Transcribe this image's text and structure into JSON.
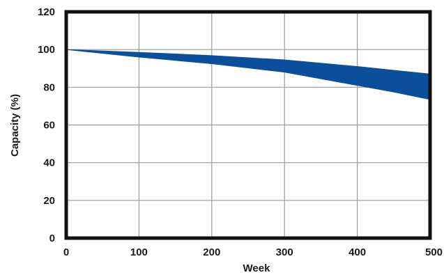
{
  "chart_data": {
    "type": "area",
    "title": "",
    "xlabel": "Week",
    "ylabel": "Capacity (%)",
    "xlim": [
      0,
      500
    ],
    "ylim": [
      0,
      120
    ],
    "x_ticks": [
      0,
      100,
      200,
      300,
      400,
      500
    ],
    "y_ticks": [
      0,
      20,
      40,
      60,
      80,
      100,
      120
    ],
    "grid": true,
    "legend": "none",
    "band": {
      "color": "#0b4f9c",
      "x": [
        0,
        100,
        200,
        300,
        400,
        450,
        500
      ],
      "upper": [
        100,
        98.5,
        96.8,
        94.5,
        91,
        89,
        87
      ],
      "lower": [
        100,
        96,
        92.5,
        88,
        81,
        77.5,
        73.5
      ]
    }
  }
}
